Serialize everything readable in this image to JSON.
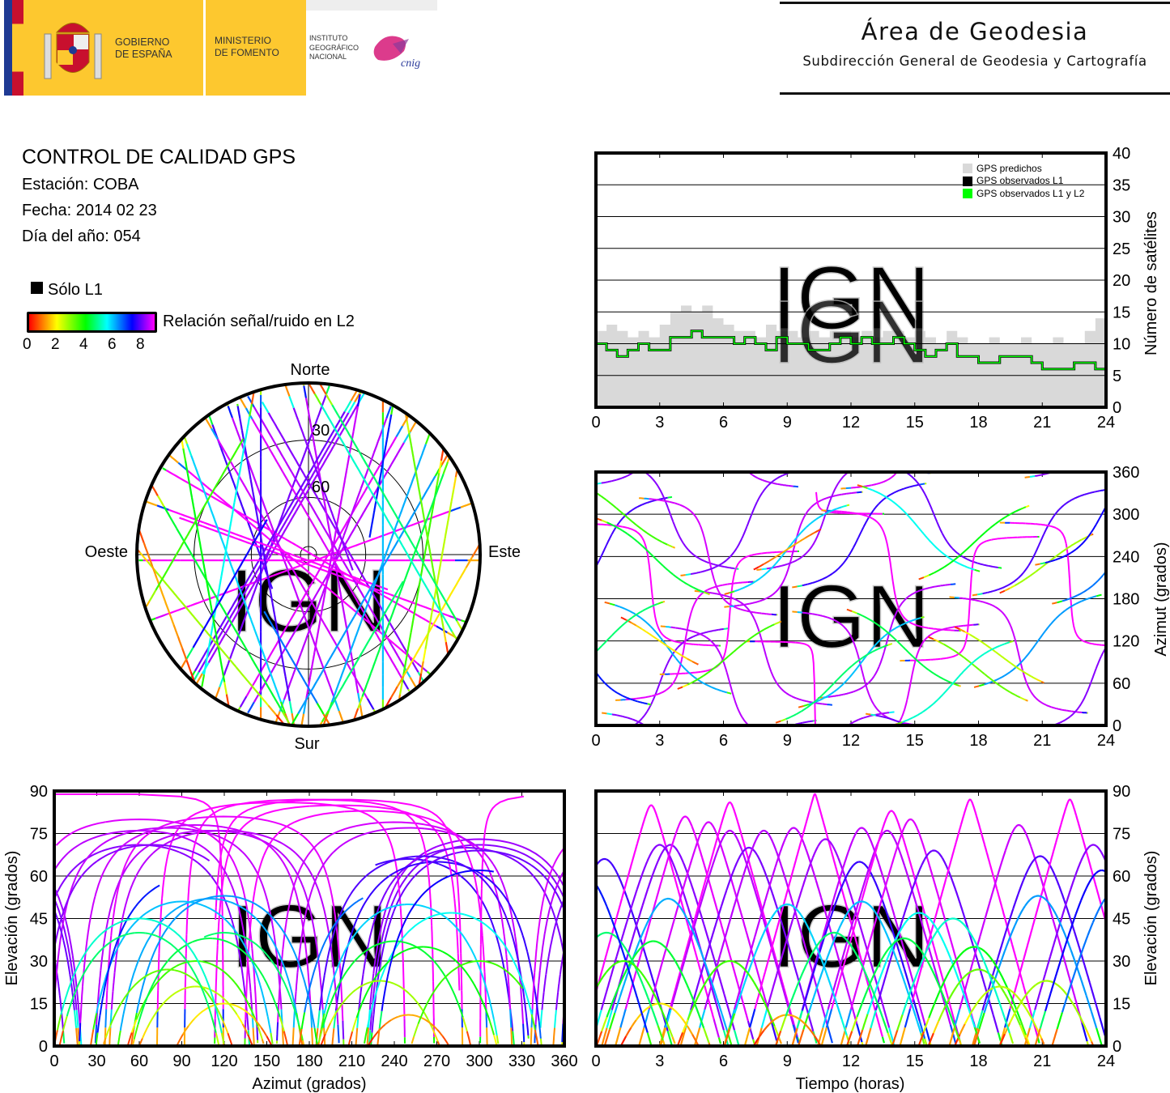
{
  "header": {
    "logo": {
      "gobierno": [
        "GOBIERNO",
        "DE ESPAÑA"
      ],
      "ministerio": [
        "MINISTERIO",
        "DE FOMENTO"
      ],
      "instituto": [
        "INSTITUTO",
        "GEOGRÁFICO",
        "NACIONAL"
      ],
      "cnig": "cnig",
      "colors": {
        "gov_yellow": "#fdc82f",
        "flag_red": "#c8102e",
        "eu_blue": "#1f3a93",
        "cnig_pink": "#d8267f"
      }
    },
    "area_title": "Área de Geodesia",
    "area_subtitle": "Subdirección General de Geodesia y Cartografía"
  },
  "info": {
    "title": "CONTROL DE CALIDAD GPS",
    "station": "Estación: COBA",
    "date": "Fecha: 2014 02 23",
    "doy": "Día del año: 054"
  },
  "legend": {
    "l1_only": "Sólo L1",
    "snr_label": "Relación señal/ruido en L2",
    "snr_ticks": [
      "0",
      "2",
      "4",
      "6",
      "8"
    ],
    "colorscale": [
      "#ff0000",
      "#ffff00",
      "#00ff00",
      "#00ffff",
      "#0000ff",
      "#ff00ff"
    ]
  },
  "watermark": "IGN",
  "chart_data": [
    {
      "id": "count",
      "type": "line",
      "xlim": [
        0,
        24
      ],
      "ylim": [
        0,
        40
      ],
      "xticks": [
        "0",
        "3",
        "6",
        "9",
        "12",
        "15",
        "18",
        "21",
        "24"
      ],
      "yticks": [
        "0",
        "5",
        "10",
        "15",
        "20",
        "25",
        "30",
        "35",
        "40"
      ],
      "ylabel": "Número de satélites",
      "grid": true,
      "legend_position": "top-right",
      "legend": [
        "GPS predichos",
        "GPS observados L1",
        "GPS observados L1 y L2"
      ],
      "colors": {
        "predicted": "#d9d9d9",
        "l1": "#000000",
        "l1l2": "#00ff00"
      },
      "x": [
        0,
        0.5,
        1,
        1.5,
        2,
        2.5,
        3,
        3.5,
        4,
        4.5,
        5,
        5.5,
        6,
        6.5,
        7,
        7.5,
        8,
        8.5,
        9,
        9.5,
        10,
        10.5,
        11,
        11.5,
        12,
        12.5,
        13,
        13.5,
        14,
        14.5,
        15,
        15.5,
        16,
        16.5,
        17,
        17.5,
        18,
        18.5,
        19,
        19.5,
        20,
        20.5,
        21,
        21.5,
        22,
        22.5,
        23,
        23.5,
        24
      ],
      "predicted": [
        12,
        13,
        12,
        11,
        12,
        11,
        13,
        15,
        16,
        15,
        16,
        14,
        13,
        12,
        12,
        11,
        13,
        12,
        12,
        11,
        12,
        11,
        12,
        12,
        11,
        12,
        11,
        12,
        12,
        11,
        12,
        11,
        10,
        12,
        11,
        10,
        10,
        11,
        10,
        10,
        11,
        10,
        10,
        11,
        10,
        10,
        12,
        14,
        12
      ],
      "observed_l1": [
        10,
        9,
        8,
        9,
        10,
        9,
        9,
        11,
        11,
        12,
        11,
        11,
        11,
        10,
        11,
        10,
        9,
        11,
        10,
        10,
        9,
        9,
        10,
        11,
        10,
        11,
        10,
        10,
        11,
        10,
        9,
        8,
        9,
        10,
        8,
        8,
        7,
        7,
        8,
        8,
        8,
        7,
        6,
        6,
        6,
        7,
        7,
        6,
        9
      ],
      "observed_l1l2": [
        10,
        9,
        8,
        9,
        10,
        9,
        9,
        11,
        11,
        12,
        11,
        11,
        11,
        10,
        11,
        10,
        9,
        11,
        10,
        10,
        9,
        9,
        10,
        11,
        10,
        11,
        10,
        10,
        11,
        10,
        9,
        8,
        9,
        10,
        8,
        8,
        7,
        7,
        8,
        8,
        8,
        7,
        6,
        6,
        6,
        7,
        7,
        6,
        9
      ]
    },
    {
      "id": "skyplot",
      "type": "scatter",
      "labels": {
        "north": "Norte",
        "south": "Sur",
        "west": "Oeste",
        "east": "Este"
      },
      "elevation_rings": [
        "30",
        "60"
      ]
    },
    {
      "id": "azimuth_time",
      "type": "scatter",
      "xlim": [
        0,
        24
      ],
      "ylim": [
        0,
        360
      ],
      "xticks": [
        "0",
        "3",
        "6",
        "9",
        "12",
        "15",
        "18",
        "21",
        "24"
      ],
      "yticks": [
        "0",
        "60",
        "120",
        "180",
        "240",
        "300",
        "360"
      ],
      "ylabel": "Azimut (grados)",
      "grid": true
    },
    {
      "id": "elev_azimuth",
      "type": "scatter",
      "xlim": [
        0,
        360
      ],
      "ylim": [
        0,
        90
      ],
      "xticks": [
        "0",
        "30",
        "60",
        "90",
        "120",
        "150",
        "180",
        "210",
        "240",
        "270",
        "300",
        "330",
        "360"
      ],
      "yticks": [
        "0",
        "15",
        "30",
        "45",
        "60",
        "75",
        "90"
      ],
      "xlabel": "Azimut (grados)",
      "ylabel": "Elevación (grados)",
      "grid": true
    },
    {
      "id": "elev_time",
      "type": "scatter",
      "xlim": [
        0,
        24
      ],
      "ylim": [
        0,
        90
      ],
      "xticks": [
        "0",
        "3",
        "6",
        "9",
        "12",
        "15",
        "18",
        "21",
        "24"
      ],
      "yticks": [
        "0",
        "15",
        "30",
        "45",
        "60",
        "75",
        "90"
      ],
      "xlabel": "Tiempo (horas)",
      "ylabel": "Elevación (grados)",
      "grid": true
    }
  ],
  "passes_fields": [
    "peak_time_h",
    "max_elevation_deg",
    "azimuth_at_peak_deg",
    "direction"
  ],
  "passes": [
    [
      0.4,
      66,
      250,
      1
    ],
    [
      2.6,
      85,
      200,
      -1
    ],
    [
      3.0,
      71,
      60,
      1
    ],
    [
      3.5,
      71,
      300,
      -1
    ],
    [
      4.2,
      81,
      120,
      1
    ],
    [
      5.3,
      79,
      240,
      -1
    ],
    [
      6.3,
      86,
      160,
      1
    ],
    [
      6.3,
      76,
      60,
      -1
    ],
    [
      7.2,
      70,
      290,
      1
    ],
    [
      7.9,
      76,
      110,
      -1
    ],
    [
      9.3,
      77,
      250,
      1
    ],
    [
      10.3,
      89,
      30,
      -1
    ],
    [
      10.8,
      73,
      300,
      1
    ],
    [
      12.5,
      77,
      80,
      -1
    ],
    [
      12.4,
      65,
      270,
      1
    ],
    [
      13.7,
      76,
      120,
      1
    ],
    [
      13.9,
      83,
      220,
      -1
    ],
    [
      14.8,
      80,
      60,
      1
    ],
    [
      15.9,
      69,
      300,
      -1
    ],
    [
      17.6,
      87,
      180,
      1
    ],
    [
      19.9,
      78,
      100,
      -1
    ],
    [
      20.9,
      67,
      260,
      1
    ],
    [
      22.3,
      87,
      200,
      -1
    ],
    [
      23.4,
      71,
      70,
      1
    ],
    [
      3.4,
      52,
      110,
      -1
    ],
    [
      9.0,
      50,
      250,
      1
    ],
    [
      12.5,
      51,
      90,
      1
    ],
    [
      15.2,
      47,
      280,
      -1
    ],
    [
      20.8,
      53,
      120,
      1
    ],
    [
      2.7,
      37,
      240,
      -1
    ],
    [
      6.3,
      30,
      100,
      1
    ],
    [
      17.8,
      35,
      260,
      1
    ],
    [
      18.0,
      27,
      80,
      -1
    ],
    [
      21.2,
      23,
      230,
      1
    ],
    [
      3.0,
      15,
      120,
      -1
    ],
    [
      9.0,
      11,
      250,
      1
    ],
    [
      19.0,
      21,
      100,
      -1
    ],
    [
      0.5,
      40,
      120,
      1
    ],
    [
      23.8,
      62,
      300,
      1
    ],
    [
      -0.5,
      60,
      100,
      -1
    ],
    [
      24.5,
      55,
      240,
      1
    ],
    [
      1.3,
      30,
      300,
      -1
    ],
    [
      11.2,
      40,
      60,
      1
    ],
    [
      14.5,
      38,
      110,
      -1
    ],
    [
      16.8,
      45,
      60,
      1
    ]
  ]
}
